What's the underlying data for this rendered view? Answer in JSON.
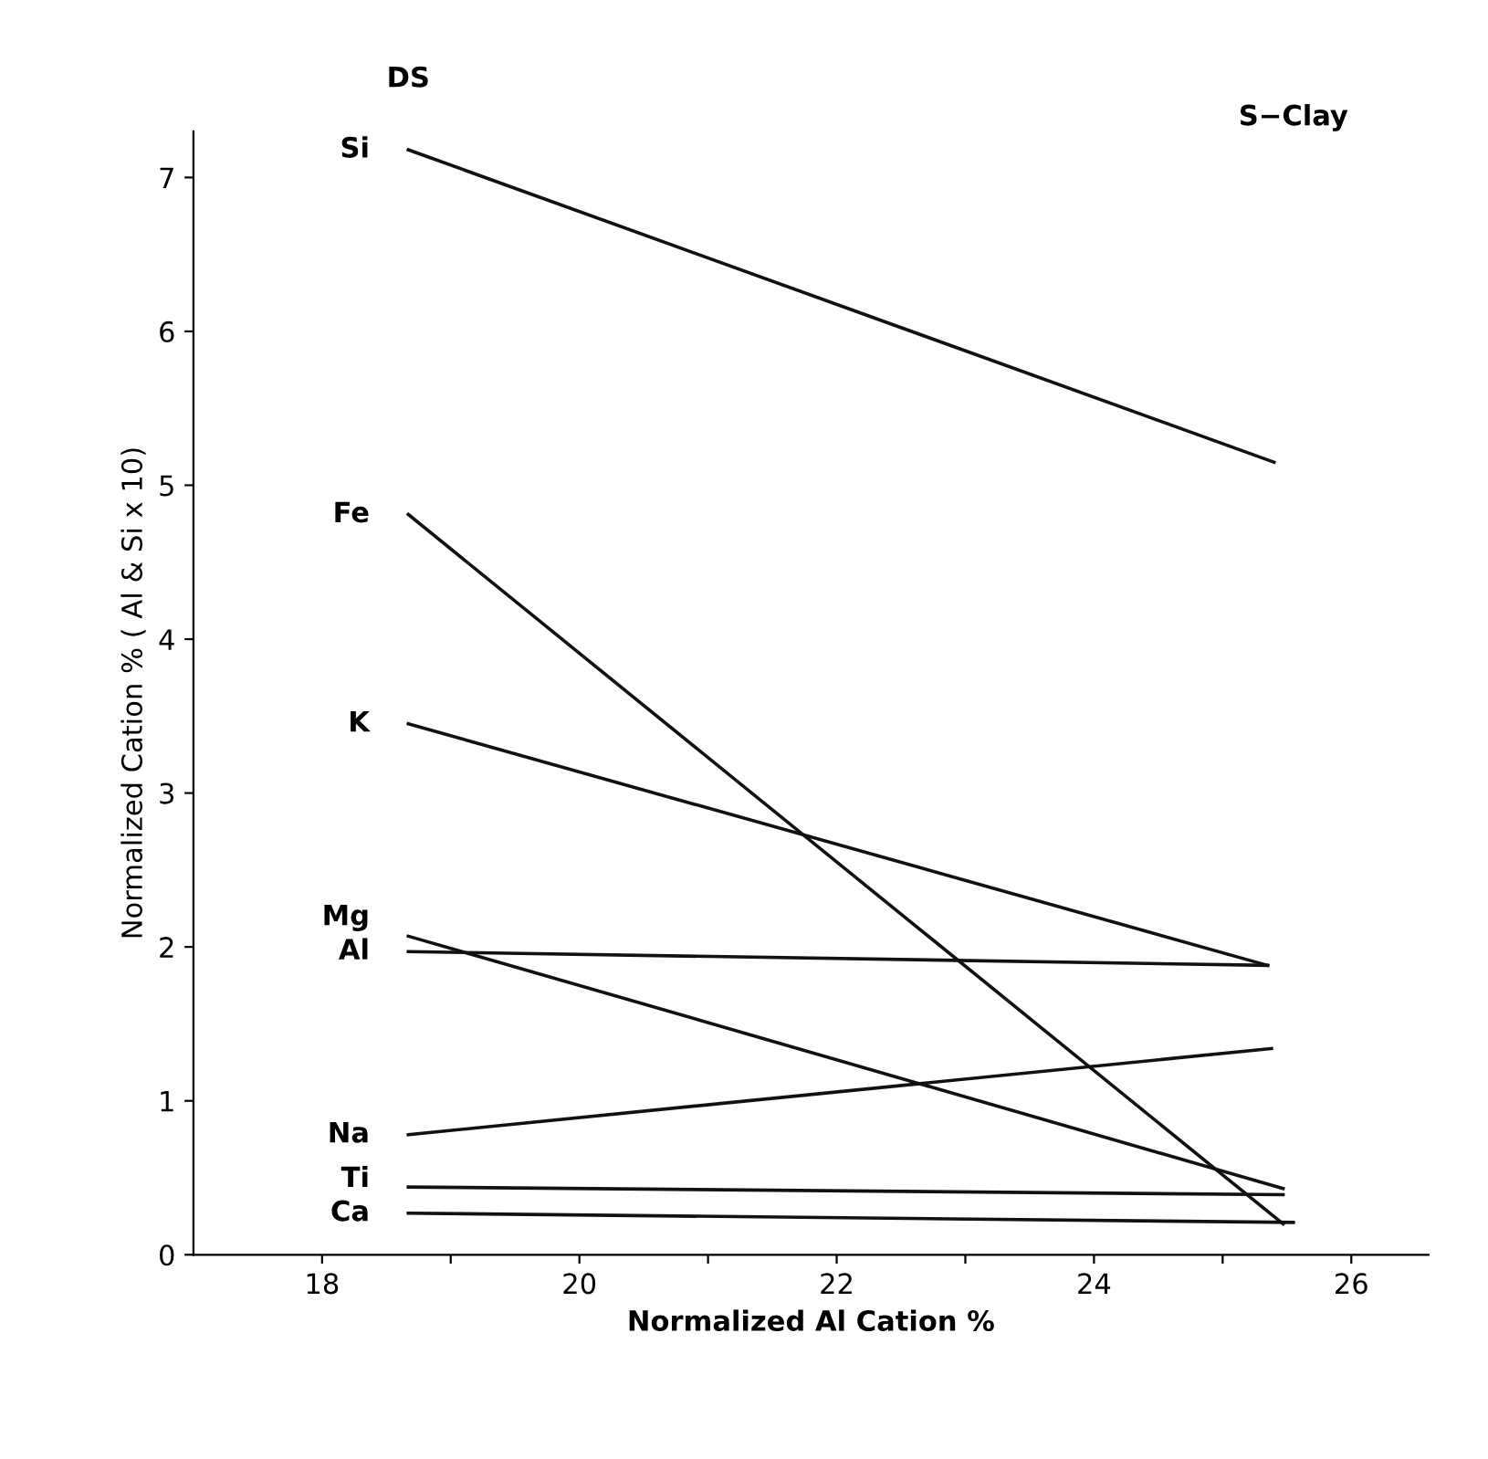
{
  "chart_data": {
    "type": "line",
    "xlabel": "Normalized Al Cation %",
    "ylabel": "Normalized Cation % ( Al & Si x 10)",
    "annotations": [
      "DS",
      "S−Clay"
    ],
    "series": [
      {
        "name": "Si",
        "color": "#111111",
        "x": [
          18.67,
          25.4
        ],
        "values": [
          7.18,
          5.15
        ]
      },
      {
        "name": "Fe",
        "color": "#111111",
        "x": [
          18.67,
          25.47
        ],
        "values": [
          4.81,
          0.2
        ]
      },
      {
        "name": "K",
        "color": "#111111",
        "x": [
          18.67,
          25.35
        ],
        "values": [
          3.45,
          1.88
        ]
      },
      {
        "name": "Mg",
        "color": "#111111",
        "x": [
          18.67,
          25.47
        ],
        "values": [
          2.07,
          0.43
        ]
      },
      {
        "name": "Al",
        "color": "#111111",
        "x": [
          18.67,
          25.35
        ],
        "values": [
          1.97,
          1.88
        ]
      },
      {
        "name": "Na",
        "color": "#111111",
        "x": [
          18.67,
          25.38
        ],
        "values": [
          0.78,
          1.34
        ]
      },
      {
        "name": "Ti",
        "color": "#111111",
        "x": [
          18.67,
          25.47
        ],
        "values": [
          0.44,
          0.39
        ]
      },
      {
        "name": "Ca",
        "color": "#111111",
        "x": [
          18.67,
          25.55
        ],
        "values": [
          0.27,
          0.21
        ]
      }
    ],
    "xlim": [
      17.0,
      26.6
    ],
    "ylim": [
      0,
      7.3
    ],
    "xticks": [
      18,
      {
        "value": 19,
        "label": null
      },
      20,
      {
        "value": 21,
        "label": null
      },
      22,
      {
        "value": 23,
        "label": null
      },
      24,
      {
        "value": 25,
        "label": null
      },
      26
    ],
    "yticks": [
      0,
      1,
      2,
      3,
      4,
      5,
      6,
      7
    ],
    "grid": false,
    "marker": "none",
    "line_style": "solid",
    "legend": false
  }
}
